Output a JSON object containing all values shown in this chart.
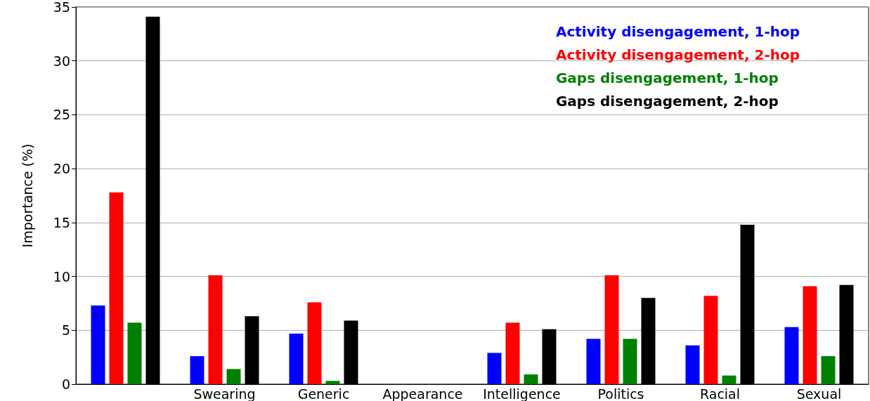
{
  "chart_data": {
    "type": "bar",
    "ylabel": "Importance (%)",
    "categories": [
      null,
      "Swearing",
      "Generic",
      "Appearance",
      "Intelligence",
      "Politics",
      "Racial",
      "Sexual"
    ],
    "series": [
      {
        "name": "Activity disengagement, 1-hop",
        "color": "#0000ff",
        "values": [
          7.3,
          2.6,
          4.7,
          0,
          2.9,
          4.2,
          3.6,
          5.3
        ]
      },
      {
        "name": "Activity disengagement, 2-hop",
        "color": "#ff0000",
        "values": [
          17.8,
          10.1,
          7.6,
          0,
          5.7,
          10.1,
          8.2,
          9.1
        ]
      },
      {
        "name": "Gaps disengagement, 1-hop",
        "color": "#008000",
        "values": [
          5.7,
          1.4,
          0.3,
          0,
          0.9,
          4.2,
          0.8,
          2.6
        ]
      },
      {
        "name": "Gaps disengagement, 2-hop",
        "color": "#000000",
        "values": [
          34.1,
          6.3,
          5.9,
          0,
          5.1,
          8.0,
          14.8,
          9.2
        ]
      }
    ],
    "ylim": [
      0,
      35
    ],
    "yticks": [
      0,
      5,
      10,
      15,
      20,
      25,
      30,
      35
    ],
    "grid": "y",
    "legend": "top right"
  }
}
